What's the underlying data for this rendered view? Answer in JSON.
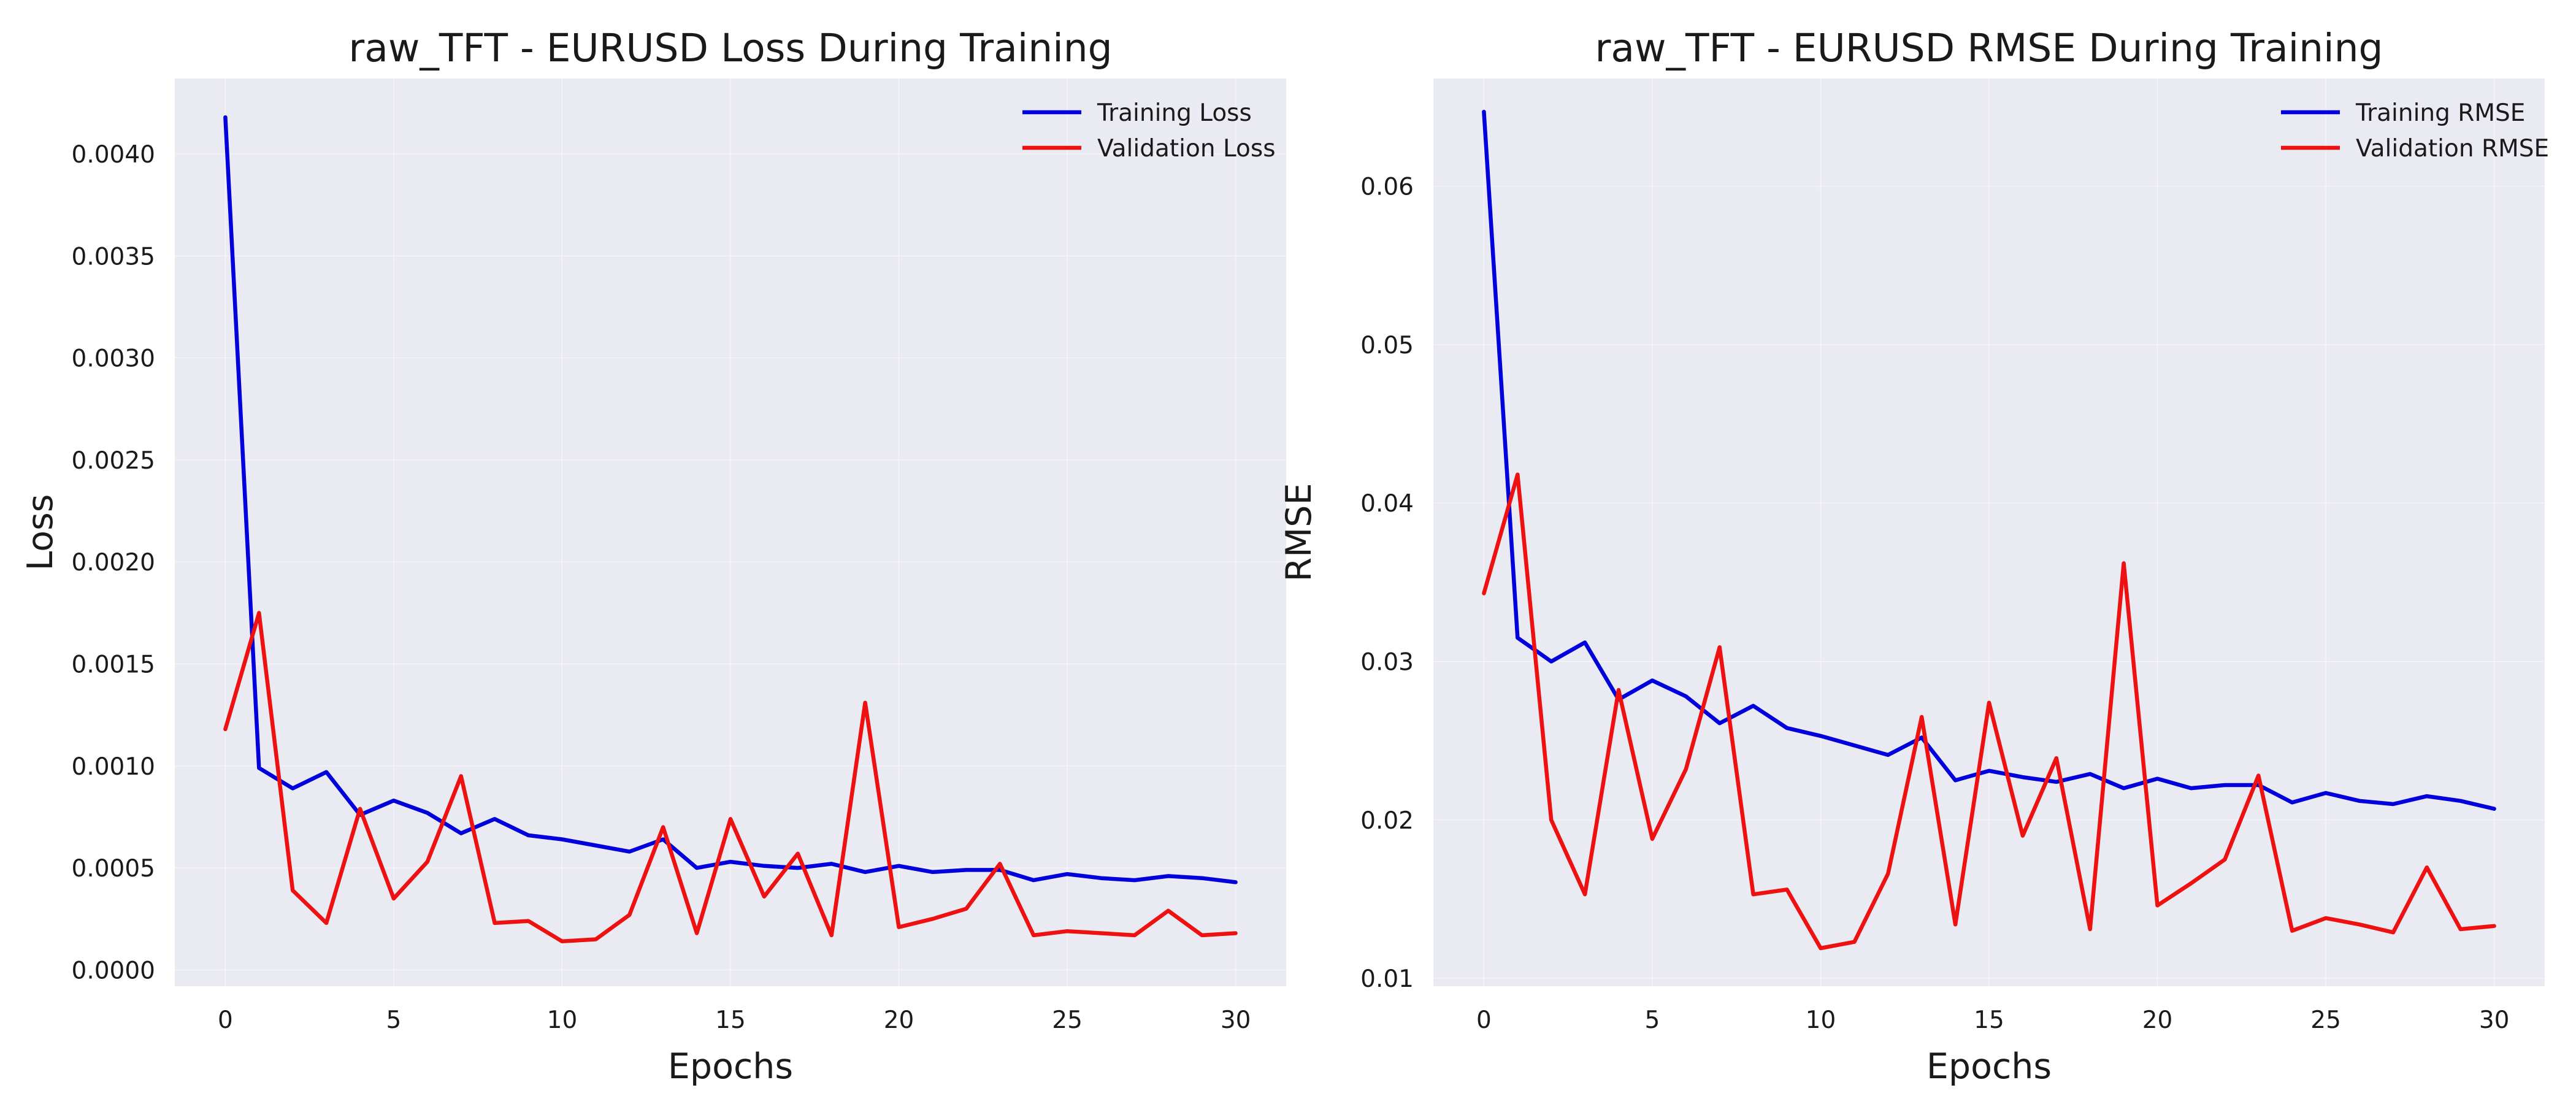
{
  "chart_data": [
    {
      "type": "line",
      "title": "raw_TFT - EURUSD Loss During Training",
      "xlabel": "Epochs",
      "ylabel": "Loss",
      "xlim": [
        -1.5,
        31.5
      ],
      "ylim": [
        -8e-05,
        0.00437
      ],
      "x_ticks": [
        0,
        5,
        10,
        15,
        20,
        25,
        30
      ],
      "x_tick_labels": [
        "0",
        "5",
        "10",
        "15",
        "20",
        "25",
        "30"
      ],
      "y_ticks": [
        0,
        0.0005,
        0.001,
        0.0015,
        0.002,
        0.0025,
        0.003,
        0.0035,
        0.004
      ],
      "y_tick_labels": [
        "0.0000",
        "0.0005",
        "0.0010",
        "0.0015",
        "0.0020",
        "0.0025",
        "0.0030",
        "0.0035",
        "0.0040"
      ],
      "grid": true,
      "legend_position": "top-right",
      "x": [
        0,
        1,
        2,
        3,
        4,
        5,
        6,
        7,
        8,
        9,
        10,
        11,
        12,
        13,
        14,
        15,
        16,
        17,
        18,
        19,
        20,
        21,
        22,
        23,
        24,
        25,
        26,
        27,
        28,
        29,
        30
      ],
      "series": [
        {
          "name": "Training Loss",
          "color": "#0000dd",
          "values": [
            0.00418,
            0.00099,
            0.00089,
            0.00097,
            0.00076,
            0.00083,
            0.00077,
            0.00067,
            0.00074,
            0.00066,
            0.00064,
            0.00061,
            0.00058,
            0.00064,
            0.0005,
            0.00053,
            0.00051,
            0.0005,
            0.00052,
            0.00048,
            0.00051,
            0.00048,
            0.00049,
            0.00049,
            0.00044,
            0.00047,
            0.00045,
            0.00044,
            0.00046,
            0.00045,
            0.00043
          ]
        },
        {
          "name": "Validation Loss",
          "color": "#ee1111",
          "values": [
            0.00118,
            0.00175,
            0.00039,
            0.00023,
            0.00079,
            0.00035,
            0.00053,
            0.00095,
            0.00023,
            0.00024,
            0.00014,
            0.00015,
            0.00027,
            0.0007,
            0.00018,
            0.00074,
            0.00036,
            0.00057,
            0.00017,
            0.00131,
            0.00021,
            0.00025,
            0.0003,
            0.00052,
            0.00017,
            0.00019,
            0.00018,
            0.00017,
            0.00029,
            0.00017,
            0.00018
          ]
        }
      ]
    },
    {
      "type": "line",
      "title": "raw_TFT - EURUSD RMSE During Training",
      "xlabel": "Epochs",
      "ylabel": "RMSE",
      "xlim": [
        -1.5,
        31.5
      ],
      "ylim": [
        0.0095,
        0.0668
      ],
      "x_ticks": [
        0,
        5,
        10,
        15,
        20,
        25,
        30
      ],
      "x_tick_labels": [
        "0",
        "5",
        "10",
        "15",
        "20",
        "25",
        "30"
      ],
      "y_ticks": [
        0.01,
        0.02,
        0.03,
        0.04,
        0.05,
        0.06
      ],
      "y_tick_labels": [
        "0.01",
        "0.02",
        "0.03",
        "0.04",
        "0.05",
        "0.06"
      ],
      "grid": true,
      "legend_position": "top-right",
      "x": [
        0,
        1,
        2,
        3,
        4,
        5,
        6,
        7,
        8,
        9,
        10,
        11,
        12,
        13,
        14,
        15,
        16,
        17,
        18,
        19,
        20,
        21,
        22,
        23,
        24,
        25,
        26,
        27,
        28,
        29,
        30
      ],
      "series": [
        {
          "name": "Training RMSE",
          "color": "#0000dd",
          "values": [
            0.0647,
            0.0315,
            0.03,
            0.0312,
            0.0276,
            0.0288,
            0.0278,
            0.0261,
            0.0272,
            0.0258,
            0.0253,
            0.0247,
            0.0241,
            0.0252,
            0.0225,
            0.0231,
            0.0227,
            0.0224,
            0.0229,
            0.022,
            0.0226,
            0.022,
            0.0222,
            0.0222,
            0.0211,
            0.0217,
            0.0212,
            0.021,
            0.0215,
            0.0212,
            0.0207
          ]
        },
        {
          "name": "Validation RMSE",
          "color": "#ee1111",
          "values": [
            0.0343,
            0.0418,
            0.02,
            0.0153,
            0.0282,
            0.0188,
            0.0232,
            0.0309,
            0.0153,
            0.0156,
            0.0119,
            0.0123,
            0.0166,
            0.0265,
            0.0134,
            0.0274,
            0.019,
            0.0239,
            0.0131,
            0.0362,
            0.0146,
            0.016,
            0.0175,
            0.0228,
            0.013,
            0.0138,
            0.0134,
            0.0129,
            0.017,
            0.0131,
            0.0133
          ]
        }
      ]
    }
  ]
}
